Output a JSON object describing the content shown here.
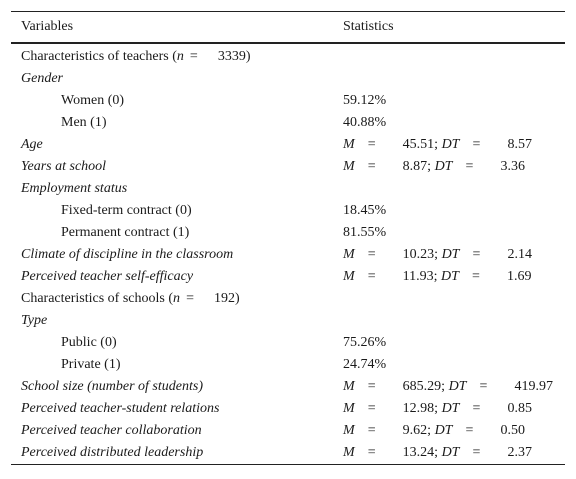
{
  "header": {
    "col_variables": "Variables",
    "col_statistics": "Statistics"
  },
  "rows": [
    {
      "kind": "section",
      "label_pre": "Characteristics of teachers (",
      "label_var": "n",
      "label_eq": "=",
      "label_num": "3339)"
    },
    {
      "kind": "group",
      "label": "Gender"
    },
    {
      "kind": "item",
      "label": "Women (0)",
      "stat": "59.12%"
    },
    {
      "kind": "item",
      "label": "Men (1)",
      "stat": "40.88%"
    },
    {
      "kind": "ms",
      "label": "Age",
      "m": "45.51",
      "dt": "8.57"
    },
    {
      "kind": "ms",
      "label": "Years at school",
      "m": "8.87",
      "dt": "3.36"
    },
    {
      "kind": "group",
      "label": "Employment status"
    },
    {
      "kind": "item",
      "label": "Fixed-term contract (0)",
      "stat": "18.45%"
    },
    {
      "kind": "item",
      "label": "Permanent contract (1)",
      "stat": "81.55%"
    },
    {
      "kind": "ms",
      "label": "Climate of discipline in the classroom",
      "m": "10.23",
      "dt": "2.14"
    },
    {
      "kind": "ms",
      "label": "Perceived teacher self-efficacy",
      "m": "11.93",
      "dt": "1.69"
    },
    {
      "kind": "section",
      "label_pre": "Characteristics of schools (",
      "label_var": "n",
      "label_eq": "=",
      "label_num": "192)"
    },
    {
      "kind": "group",
      "label": "Type"
    },
    {
      "kind": "item",
      "label": "Public (0)",
      "stat": "75.26%"
    },
    {
      "kind": "item",
      "label": "Private (1)",
      "stat": "24.74%"
    },
    {
      "kind": "ms",
      "label": "School size (number of students)",
      "m": "685.29",
      "dt": "419.97"
    },
    {
      "kind": "ms",
      "label": "Perceived teacher-student relations",
      "m": "12.98",
      "dt": "0.85"
    },
    {
      "kind": "ms",
      "label": "Perceived teacher collaboration",
      "m": "9.62",
      "dt": "0.50"
    },
    {
      "kind": "ms",
      "label": "Perceived distributed leadership",
      "m": "13.24",
      "dt": "2.37"
    }
  ],
  "symbols": {
    "mean": "M",
    "dev": "DT",
    "equals": "=",
    "separator": ";"
  }
}
